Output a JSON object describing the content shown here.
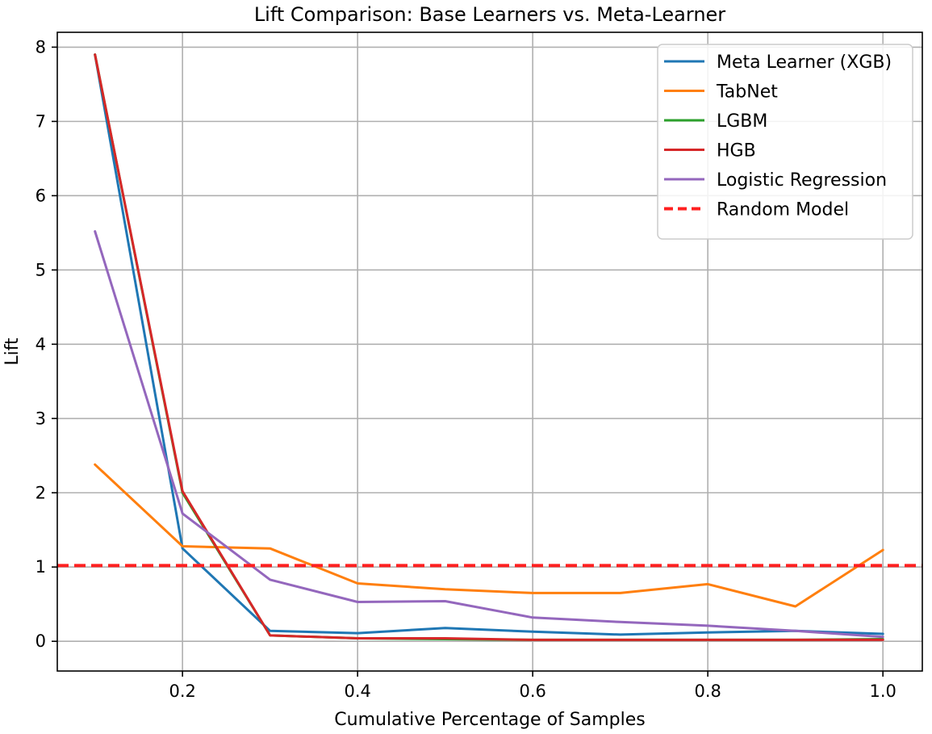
{
  "chart_data": {
    "type": "line",
    "title": "Lift Comparison: Base Learners vs. Meta-Learner",
    "xlabel": "Cumulative Percentage of Samples",
    "ylabel": "Lift",
    "xlim": [
      0.057,
      1.045
    ],
    "ylim": [
      -0.4,
      8.2
    ],
    "xticks": [
      0.2,
      0.4,
      0.6,
      0.8,
      1.0
    ],
    "xtick_labels": [
      "0.2",
      "0.4",
      "0.6",
      "0.8",
      "1.0"
    ],
    "yticks": [
      0,
      1,
      2,
      3,
      4,
      5,
      6,
      7,
      8
    ],
    "ytick_labels": [
      "0",
      "1",
      "2",
      "3",
      "4",
      "5",
      "6",
      "7",
      "8"
    ],
    "grid": true,
    "legend_position": "top-right",
    "x": [
      0.1,
      0.2,
      0.3,
      0.4,
      0.5,
      0.6,
      0.7,
      0.8,
      0.9,
      1.0
    ],
    "series": [
      {
        "name": "Meta Learner (XGB)",
        "color": "#1f77b4",
        "style": "solid",
        "values": [
          7.9,
          1.25,
          0.14,
          0.11,
          0.18,
          0.13,
          0.09,
          0.12,
          0.14,
          0.1
        ]
      },
      {
        "name": "TabNet",
        "color": "#ff7f0e",
        "style": "solid",
        "values": [
          2.38,
          1.28,
          1.25,
          0.78,
          0.7,
          0.65,
          0.65,
          0.77,
          0.47,
          1.23
        ]
      },
      {
        "name": "LGBM",
        "color": "#2ca02c",
        "style": "solid",
        "values": [
          7.9,
          2.0,
          0.08,
          0.04,
          0.03,
          0.02,
          0.02,
          0.02,
          0.02,
          0.03
        ]
      },
      {
        "name": "HGB",
        "color": "#d62728",
        "style": "solid",
        "values": [
          7.9,
          2.02,
          0.08,
          0.04,
          0.04,
          0.02,
          0.02,
          0.02,
          0.02,
          0.02
        ]
      },
      {
        "name": "Logistic Regression",
        "color": "#9467bd",
        "style": "solid",
        "values": [
          5.52,
          1.72,
          0.83,
          0.53,
          0.54,
          0.32,
          0.26,
          0.21,
          0.14,
          0.06
        ]
      },
      {
        "name": "Random Model",
        "color": "#ff2020",
        "style": "dashed",
        "constant": 1.02
      }
    ]
  }
}
